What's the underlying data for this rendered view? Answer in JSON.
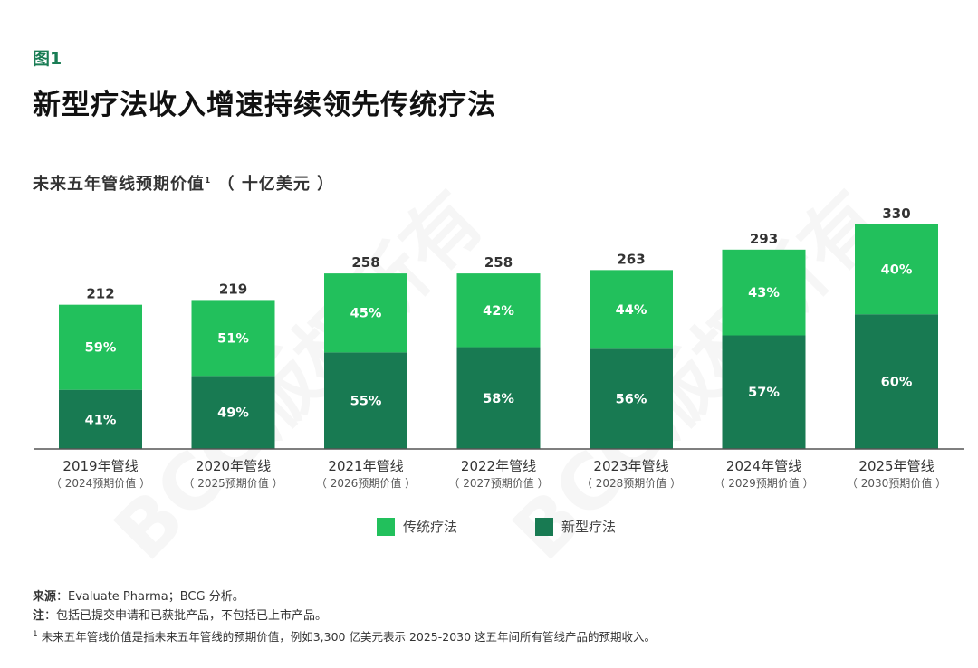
{
  "figure_label": "图1",
  "title": "新型疗法收入增速持续领先传统疗法",
  "subtitle": "未来五年管线预期价值",
  "subtitle_sup": "1",
  "subtitle_unit": "（ 十亿美元 ）",
  "watermark": "BCG版权所有",
  "colors": {
    "traditional": "#22c05c",
    "novel": "#187a52",
    "axis": "#555555",
    "fig_label": "#1a7d55"
  },
  "chart_data": {
    "type": "bar",
    "stacked": true,
    "title": "未来五年管线预期价值¹（ 十亿美元 ）",
    "categories": [
      "2019年管线",
      "2020年管线",
      "2021年管线",
      "2022年管线",
      "2023年管线",
      "2024年管线",
      "2025年管线"
    ],
    "sub_categories": [
      "（ 2024预期价值 ）",
      "（ 2025预期价值 ）",
      "（ 2026预期价值 ）",
      "（ 2027预期价值 ）",
      "（ 2028预期价值 ）",
      "（ 2029预期价值 ）",
      "（ 2030预期价值 ）"
    ],
    "totals": [
      212,
      219,
      258,
      258,
      263,
      293,
      330
    ],
    "series": [
      {
        "name": "新型疗法",
        "values_pct": [
          41,
          49,
          55,
          58,
          56,
          57,
          60
        ],
        "labels": [
          "41%",
          "49%",
          "55%",
          "58%",
          "56%",
          "57%",
          "60%"
        ]
      },
      {
        "name": "传统疗法",
        "values_pct": [
          59,
          51,
          45,
          42,
          44,
          43,
          40
        ],
        "labels": [
          "59%",
          "51%",
          "45%",
          "42%",
          "44%",
          "43%",
          "40%"
        ]
      }
    ],
    "ylim": [
      0,
      330
    ],
    "xlabel": "",
    "ylabel": ""
  },
  "legend": [
    {
      "name": "传统疗法"
    },
    {
      "name": "新型疗法"
    }
  ],
  "notes": {
    "source_label": "来源",
    "source_text": "：Evaluate Pharma；BCG 分析。",
    "note_label": "注",
    "note_text": "：包括已提交申请和已获批产品，不包括已上市产品。",
    "footnote_mark": "1",
    "footnote_text": " 未来五年管线价值是指未来五年管线的预期价值，例如3,300 亿美元表示 2025-2030 这五年间所有管线产品的预期收入。"
  }
}
